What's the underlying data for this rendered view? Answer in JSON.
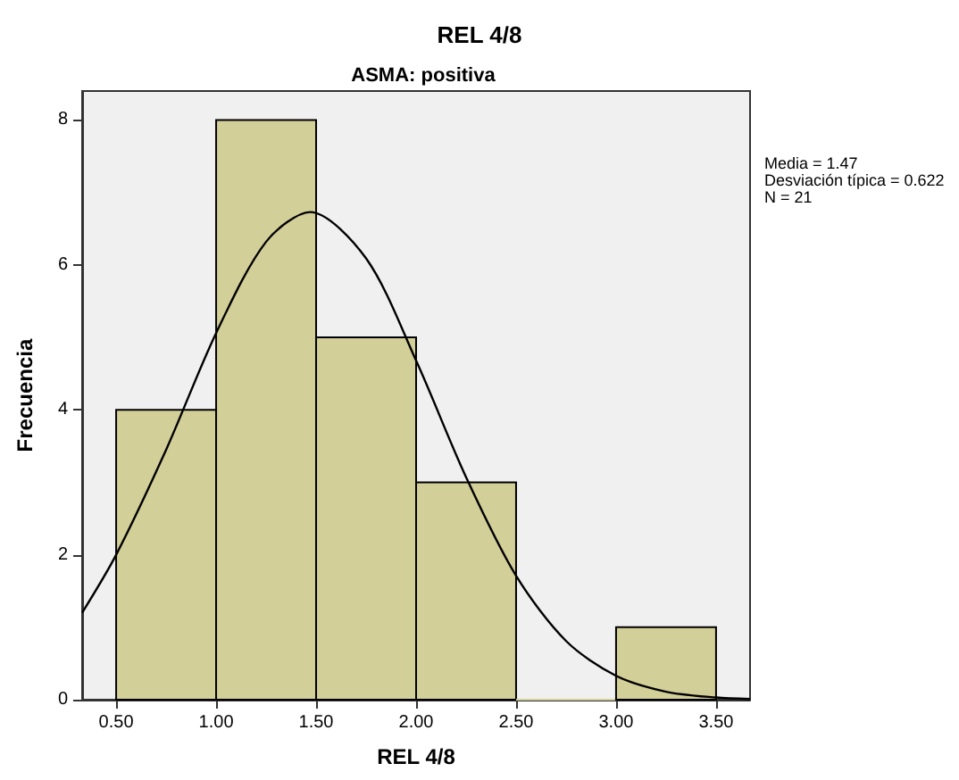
{
  "chart_data": {
    "type": "histogram",
    "title": "REL 4/8",
    "subtitle": "ASMA: positiva",
    "xlabel": "REL 4/8",
    "ylabel": "Frecuencia",
    "annotations": [
      "Media = 1.47",
      "Desviación típica = 0.622",
      "N = 21"
    ],
    "series": [
      {
        "color": "#d3cf98",
        "bins": [
          0.5,
          1.0,
          1.5,
          2.0,
          2.5,
          3.0,
          3.5
        ],
        "values": [
          4,
          8,
          5,
          3,
          0,
          1
        ]
      },
      {
        "type": "line",
        "color": "#000000",
        "x": [
          0.33,
          0.5,
          0.75,
          1.0,
          1.25,
          1.47,
          1.75,
          2.0,
          2.25,
          2.5,
          2.75,
          3.0,
          3.25,
          3.5,
          3.67
        ],
        "values": [
          1.2,
          2.0,
          3.45,
          5.06,
          6.32,
          6.73,
          6.09,
          4.68,
          3.07,
          1.71,
          0.81,
          0.33,
          0.11,
          0.03,
          0.01
        ]
      }
    ],
    "xlim": [
      0.33,
      3.67
    ],
    "xticks": [
      {
        "value": 0.5,
        "label": "0.50"
      },
      {
        "value": 1.0,
        "label": "1.00"
      },
      {
        "value": 1.5,
        "label": "1.50"
      },
      {
        "value": 2.0,
        "label": "2.00"
      },
      {
        "value": 2.5,
        "label": "2.50"
      },
      {
        "value": 3.0,
        "label": "3.00"
      },
      {
        "value": 3.5,
        "label": "3.50"
      }
    ],
    "ylim": [
      0,
      8.4
    ],
    "yticks": [
      0,
      2,
      4,
      6,
      8
    ],
    "grid": false,
    "marker": "none"
  }
}
